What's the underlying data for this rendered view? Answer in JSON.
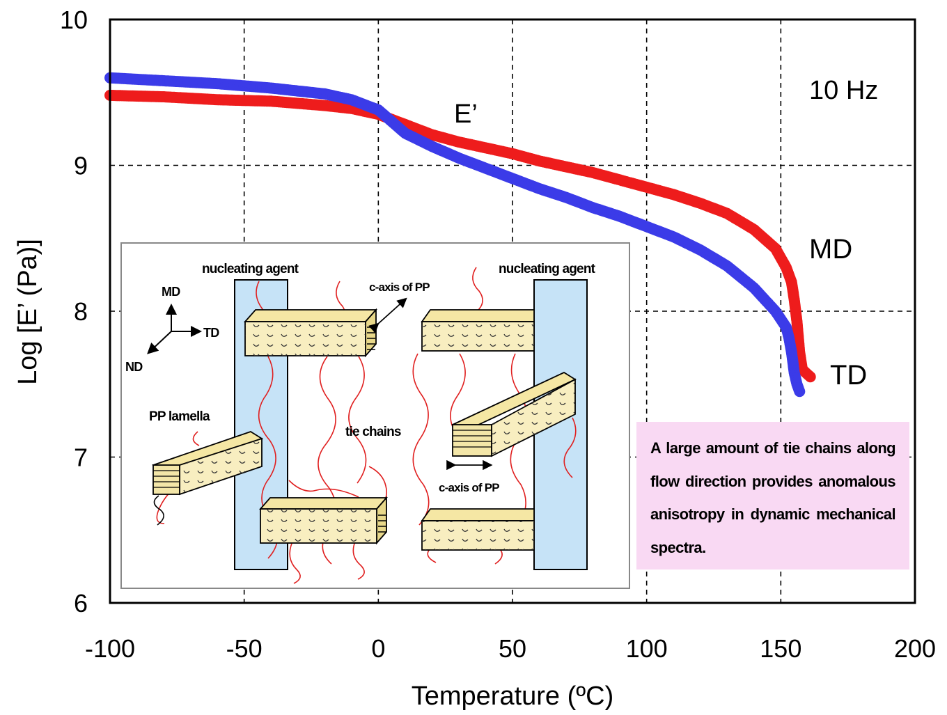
{
  "chart_data": {
    "type": "scatter",
    "title": "",
    "xlabel": "Temperature (ºC)",
    "ylabel": "Log [E’ (Pa)]",
    "xlim": [
      -100,
      200
    ],
    "ylim": [
      6,
      10
    ],
    "xticks": [
      -100,
      -50,
      0,
      50,
      100,
      150,
      200
    ],
    "yticks": [
      6,
      7,
      8,
      9,
      10
    ],
    "xtick_labels": [
      "-100",
      "-50",
      "0",
      "50",
      "100",
      "150",
      "200"
    ],
    "ytick_labels": [
      "6",
      "7",
      "8",
      "9",
      "10"
    ],
    "grid": true,
    "annotations": {
      "frequency": "10 Hz",
      "modulus": "E’"
    },
    "series": [
      {
        "name": "MD",
        "color": "#ee1c1c",
        "points": [
          [
            -100,
            9.48
          ],
          [
            -80,
            9.47
          ],
          [
            -60,
            9.45
          ],
          [
            -40,
            9.44
          ],
          [
            -20,
            9.41
          ],
          [
            -10,
            9.39
          ],
          [
            0,
            9.35
          ],
          [
            10,
            9.28
          ],
          [
            20,
            9.21
          ],
          [
            30,
            9.16
          ],
          [
            40,
            9.12
          ],
          [
            50,
            9.08
          ],
          [
            60,
            9.03
          ],
          [
            70,
            8.99
          ],
          [
            80,
            8.95
          ],
          [
            90,
            8.9
          ],
          [
            100,
            8.85
          ],
          [
            110,
            8.8
          ],
          [
            120,
            8.74
          ],
          [
            130,
            8.67
          ],
          [
            140,
            8.56
          ],
          [
            148,
            8.43
          ],
          [
            152,
            8.3
          ],
          [
            154,
            8.2
          ],
          [
            155,
            8.08
          ],
          [
            156,
            7.93
          ],
          [
            157,
            7.72
          ],
          [
            158,
            7.6
          ],
          [
            161,
            7.55
          ]
        ]
      },
      {
        "name": "TD",
        "color": "#3b3be8",
        "points": [
          [
            -100,
            9.6
          ],
          [
            -80,
            9.58
          ],
          [
            -60,
            9.56
          ],
          [
            -40,
            9.53
          ],
          [
            -20,
            9.49
          ],
          [
            -10,
            9.45
          ],
          [
            0,
            9.38
          ],
          [
            5,
            9.3
          ],
          [
            10,
            9.22
          ],
          [
            20,
            9.13
          ],
          [
            30,
            9.05
          ],
          [
            40,
            8.98
          ],
          [
            50,
            8.91
          ],
          [
            60,
            8.84
          ],
          [
            70,
            8.78
          ],
          [
            80,
            8.71
          ],
          [
            90,
            8.65
          ],
          [
            100,
            8.58
          ],
          [
            110,
            8.51
          ],
          [
            120,
            8.42
          ],
          [
            130,
            8.31
          ],
          [
            140,
            8.16
          ],
          [
            148,
            8.0
          ],
          [
            152,
            7.89
          ],
          [
            153,
            7.82
          ],
          [
            154,
            7.72
          ],
          [
            155,
            7.58
          ],
          [
            156,
            7.5
          ],
          [
            157,
            7.45
          ]
        ]
      }
    ]
  },
  "inset": {
    "nucleating_agent_left": "nucleating agent",
    "nucleating_agent_right": "nucleating agent",
    "c_axis_top": "c-axis of PP",
    "c_axis_bottom": "c-axis of PP",
    "pp_lamella": "PP lamella",
    "tie_chains": "tie chains",
    "axis_md": "MD",
    "axis_td": "TD",
    "axis_nd": "ND"
  },
  "note": "A large amount of tie chains along flow direction provides anomalous anisotropy in dynamic mechanical spectra."
}
